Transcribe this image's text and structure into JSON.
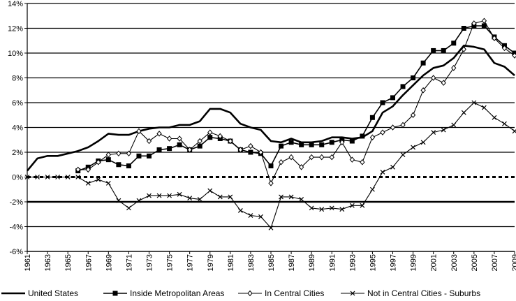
{
  "chart_data": {
    "type": "line",
    "title": "",
    "xlabel": "",
    "ylabel": "",
    "ylim": [
      -6,
      14
    ],
    "xlim": [
      1961,
      2009
    ],
    "y_ticks": [
      "14%",
      "12%",
      "10%",
      "8%",
      "6%",
      "4%",
      "2%",
      "0%",
      "-2%",
      "-4%",
      "-6%"
    ],
    "y_tick_values": [
      14,
      12,
      10,
      8,
      6,
      4,
      2,
      0,
      -2,
      -4,
      -6
    ],
    "x_ticks": [
      "1961",
      "1963",
      "1965",
      "1967",
      "1969",
      "1971",
      "1973",
      "1975",
      "1977",
      "1979",
      "1981",
      "1983",
      "1985",
      "1987",
      "1989",
      "1991",
      "1993",
      "1995",
      "1997",
      "1999",
      "2001",
      "2003",
      "2005",
      "2007",
      "2009"
    ],
    "x_tick_values": [
      1961,
      1963,
      1965,
      1967,
      1969,
      1971,
      1973,
      1975,
      1977,
      1979,
      1981,
      1983,
      1985,
      1987,
      1989,
      1991,
      1993,
      1995,
      1997,
      1999,
      2001,
      2003,
      2005,
      2007,
      2009
    ],
    "grid": "horizontal",
    "legend_position": "bottom",
    "colors": {
      "series": "#000000",
      "zero_line": "#000000",
      "grid": "#000000"
    },
    "series": [
      {
        "name": "United States",
        "marker": "none",
        "x": [
          1961,
          1962,
          1963,
          1964,
          1965,
          1966,
          1967,
          1968,
          1969,
          1970,
          1971,
          1972,
          1973,
          1974,
          1975,
          1976,
          1977,
          1978,
          1979,
          1980,
          1981,
          1982,
          1983,
          1984,
          1985,
          1986,
          1987,
          1988,
          1989,
          1990,
          1991,
          1992,
          1993,
          1994,
          1995,
          1996,
          1997,
          1998,
          1999,
          2000,
          2001,
          2002,
          2003,
          2004,
          2005,
          2006,
          2007,
          2008,
          2009
        ],
        "values": [
          0.5,
          1.5,
          1.7,
          1.7,
          1.9,
          2.1,
          2.4,
          2.9,
          3.5,
          3.4,
          3.4,
          3.7,
          3.9,
          4.0,
          4.0,
          4.2,
          4.2,
          4.5,
          5.5,
          5.5,
          5.2,
          4.3,
          4.0,
          3.8,
          2.9,
          2.8,
          3.1,
          2.8,
          2.8,
          2.9,
          3.2,
          3.2,
          3.1,
          3.2,
          3.7,
          5.2,
          5.7,
          6.6,
          7.4,
          8.2,
          8.8,
          9.0,
          9.6,
          10.6,
          10.5,
          10.3,
          9.2,
          8.9,
          8.2
        ]
      },
      {
        "name": "Inside Metropolitan Areas",
        "marker": "filled-square",
        "x": [
          1966,
          1967,
          1968,
          1969,
          1970,
          1971,
          1972,
          1973,
          1974,
          1975,
          1976,
          1977,
          1978,
          1979,
          1980,
          1981,
          1982,
          1983,
          1984,
          1985,
          1986,
          1987,
          1988,
          1989,
          1990,
          1991,
          1992,
          1993,
          1994,
          1995,
          1996,
          1997,
          1998,
          1999,
          2000,
          2001,
          2002,
          2003,
          2004,
          2005,
          2006,
          2007,
          2008,
          2009
        ],
        "values": [
          0.5,
          0.8,
          1.3,
          1.4,
          1.0,
          0.9,
          1.7,
          1.7,
          2.2,
          2.3,
          2.6,
          2.2,
          2.5,
          3.2,
          3.1,
          2.9,
          2.2,
          2.0,
          1.9,
          0.9,
          2.5,
          2.8,
          2.6,
          2.6,
          2.6,
          2.8,
          3.0,
          2.9,
          3.3,
          4.8,
          6.0,
          6.4,
          7.3,
          8.0,
          9.2,
          10.2,
          10.2,
          10.8,
          12.0,
          12.2,
          12.2,
          11.3,
          10.6,
          10.0
        ]
      },
      {
        "name": "In Central Cities",
        "marker": "open-diamond",
        "x": [
          1966,
          1967,
          1968,
          1969,
          1970,
          1971,
          1972,
          1973,
          1974,
          1975,
          1976,
          1977,
          1978,
          1979,
          1980,
          1981,
          1982,
          1983,
          1984,
          1985,
          1986,
          1987,
          1988,
          1989,
          1990,
          1991,
          1992,
          1993,
          1994,
          1995,
          1996,
          1997,
          1998,
          1999,
          2000,
          2001,
          2002,
          2003,
          2004,
          2005,
          2006,
          2007,
          2008,
          2009
        ],
        "values": [
          0.6,
          0.6,
          1.2,
          1.8,
          1.9,
          1.9,
          3.7,
          2.9,
          3.5,
          3.1,
          3.1,
          2.2,
          2.9,
          3.6,
          3.3,
          2.9,
          2.2,
          2.5,
          2.0,
          -0.5,
          1.2,
          1.6,
          0.8,
          1.6,
          1.6,
          1.6,
          2.8,
          1.4,
          1.2,
          3.2,
          3.6,
          4.0,
          4.2,
          5.0,
          7.0,
          8.0,
          7.6,
          8.8,
          10.3,
          12.4,
          12.6,
          11.2,
          10.4,
          9.8
        ]
      },
      {
        "name": "Not in Central Cities - Suburbs",
        "marker": "x",
        "x": [
          1961,
          1962,
          1963,
          1964,
          1965,
          1966,
          1967,
          1968,
          1969,
          1970,
          1971,
          1972,
          1973,
          1974,
          1975,
          1976,
          1977,
          1978,
          1979,
          1980,
          1981,
          1982,
          1983,
          1984,
          1985,
          1986,
          1987,
          1988,
          1989,
          1990,
          1991,
          1992,
          1993,
          1994,
          1995,
          1996,
          1997,
          1998,
          1999,
          2000,
          2001,
          2002,
          2003,
          2004,
          2005,
          2006,
          2007,
          2008,
          2009
        ],
        "values": [
          0,
          0,
          0,
          0,
          0,
          0,
          -0.5,
          -0.2,
          -0.5,
          -1.9,
          -2.5,
          -1.9,
          -1.5,
          -1.5,
          -1.5,
          -1.4,
          -1.7,
          -1.8,
          -1.1,
          -1.6,
          -1.6,
          -2.7,
          -3.1,
          -3.2,
          -4.1,
          -1.6,
          -1.6,
          -1.8,
          -2.5,
          -2.6,
          -2.5,
          -2.6,
          -2.3,
          -2.3,
          -1.0,
          0.4,
          0.8,
          1.8,
          2.4,
          2.8,
          3.6,
          3.8,
          4.2,
          5.2,
          6.0,
          5.6,
          4.8,
          4.3,
          3.7
        ]
      }
    ]
  }
}
